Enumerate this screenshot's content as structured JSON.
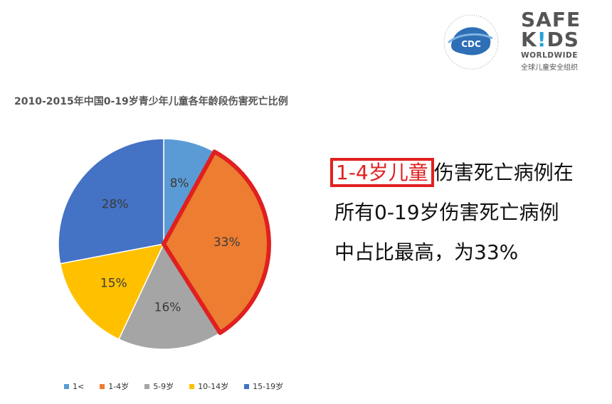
{
  "chart_data": {
    "type": "pie",
    "title": "2010-2015年中国0-19岁青少年儿童各年龄段伤害死亡比例",
    "categories": [
      "1<",
      "1-4岁",
      "5-9岁",
      "10-14岁",
      "15-19岁"
    ],
    "values": [
      8,
      33,
      16,
      15,
      28
    ],
    "labels": [
      "8%",
      "33%",
      "16%",
      "15%",
      "28%"
    ],
    "colors": [
      "#5b9bd5",
      "#ed7d31",
      "#a5a5a5",
      "#ffc000",
      "#4472c4"
    ],
    "highlight_index": 1,
    "highlight_color": "#e02020",
    "legend_position": "bottom"
  },
  "logos": {
    "cdc_text": "CDC",
    "safekids_line1": "SAFE",
    "safekids_line2_a": "K",
    "safekids_line2_dot": "!",
    "safekids_line2_b": "DS",
    "safekids_line3": "WORLDWIDE",
    "safekids_cn": "全球儿童安全组织"
  },
  "statement": {
    "highlight": "1-4岁儿童",
    "rest": "伤害死亡病例在所有0-19岁伤害死亡病例中占比最高，为33%"
  }
}
